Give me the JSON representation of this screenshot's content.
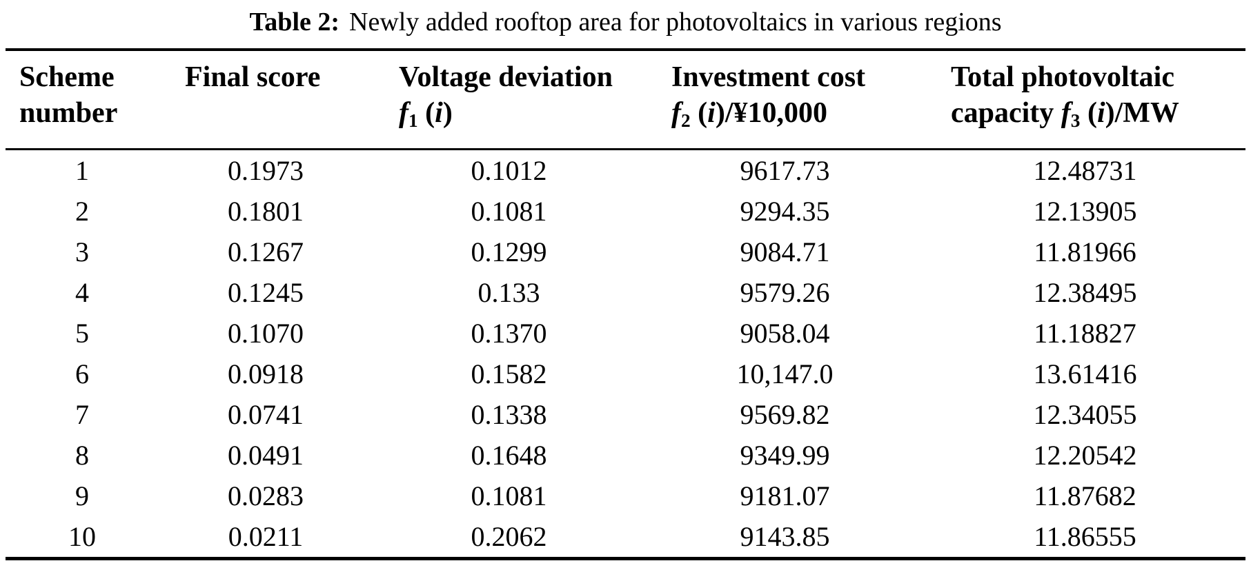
{
  "title": {
    "label": "Table 2:",
    "text": "Newly added rooftop area for photovoltaics in various regions"
  },
  "table": {
    "columns": [
      {
        "id": "scheme-number",
        "line1": "Scheme",
        "line2": "number"
      },
      {
        "id": "final-score",
        "line1": "Final score"
      },
      {
        "id": "voltage-deviation",
        "line1": "Voltage deviation",
        "line2_segments": [
          {
            "text": "f",
            "style": "it"
          },
          {
            "text": "1",
            "style": "sub"
          },
          {
            "text": " (",
            "style": "up"
          },
          {
            "text": "i",
            "style": "it"
          },
          {
            "text": ")",
            "style": "up"
          }
        ]
      },
      {
        "id": "investment-cost",
        "line1": "Investment cost",
        "line2_segments": [
          {
            "text": "f",
            "style": "it"
          },
          {
            "text": "2",
            "style": "sub"
          },
          {
            "text": " (",
            "style": "up"
          },
          {
            "text": "i",
            "style": "it"
          },
          {
            "text": ")/¥10,000",
            "style": "up"
          }
        ]
      },
      {
        "id": "total-photovoltaic-capacity",
        "line1": "Total photovoltaic",
        "line2_segments": [
          {
            "text": "capacity ",
            "style": "up"
          },
          {
            "text": "f",
            "style": "it"
          },
          {
            "text": "3",
            "style": "sub"
          },
          {
            "text": " (",
            "style": "up"
          },
          {
            "text": "i",
            "style": "it"
          },
          {
            "text": ")/MW",
            "style": "up"
          }
        ]
      }
    ],
    "rows": [
      [
        "1",
        "0.1973",
        "0.1012",
        "9617.73",
        "12.48731"
      ],
      [
        "2",
        "0.1801",
        "0.1081",
        "9294.35",
        "12.13905"
      ],
      [
        "3",
        "0.1267",
        "0.1299",
        "9084.71",
        "11.81966"
      ],
      [
        "4",
        "0.1245",
        "0.133",
        "9579.26",
        "12.38495"
      ],
      [
        "5",
        "0.1070",
        "0.1370",
        "9058.04",
        "11.18827"
      ],
      [
        "6",
        "0.0918",
        "0.1582",
        "10,147.0",
        "13.61416"
      ],
      [
        "7",
        "0.0741",
        "0.1338",
        "9569.82",
        "12.34055"
      ],
      [
        "8",
        "0.0491",
        "0.1648",
        "9349.99",
        "12.20542"
      ],
      [
        "9",
        "0.0283",
        "0.1081",
        "9181.07",
        "11.87682"
      ],
      [
        "10",
        "0.0211",
        "0.2062",
        "9143.85",
        "11.86555"
      ]
    ]
  }
}
